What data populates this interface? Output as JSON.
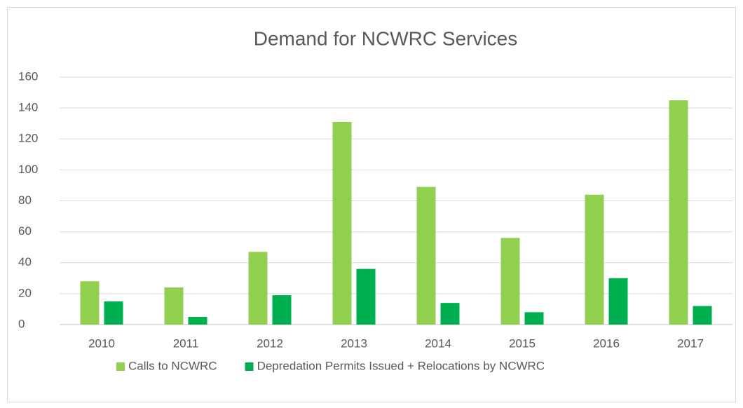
{
  "chart_data": {
    "type": "bar",
    "title": "Demand for NCWRC Services",
    "categories": [
      "2010",
      "2011",
      "2012",
      "2013",
      "2014",
      "2015",
      "2016",
      "2017"
    ],
    "series": [
      {
        "name": "Calls to NCWRC",
        "color": "#92d050",
        "values": [
          28,
          24,
          47,
          131,
          89,
          56,
          84,
          145
        ]
      },
      {
        "name": "Depredation Permits Issued + Relocations by NCWRC",
        "color": "#00b050",
        "values": [
          15,
          5,
          19,
          36,
          14,
          8,
          30,
          12
        ]
      }
    ],
    "ylim": [
      0,
      160
    ],
    "yticks": [
      0,
      20,
      40,
      60,
      80,
      100,
      120,
      140,
      160
    ],
    "grid": true,
    "legend": "bottom"
  }
}
